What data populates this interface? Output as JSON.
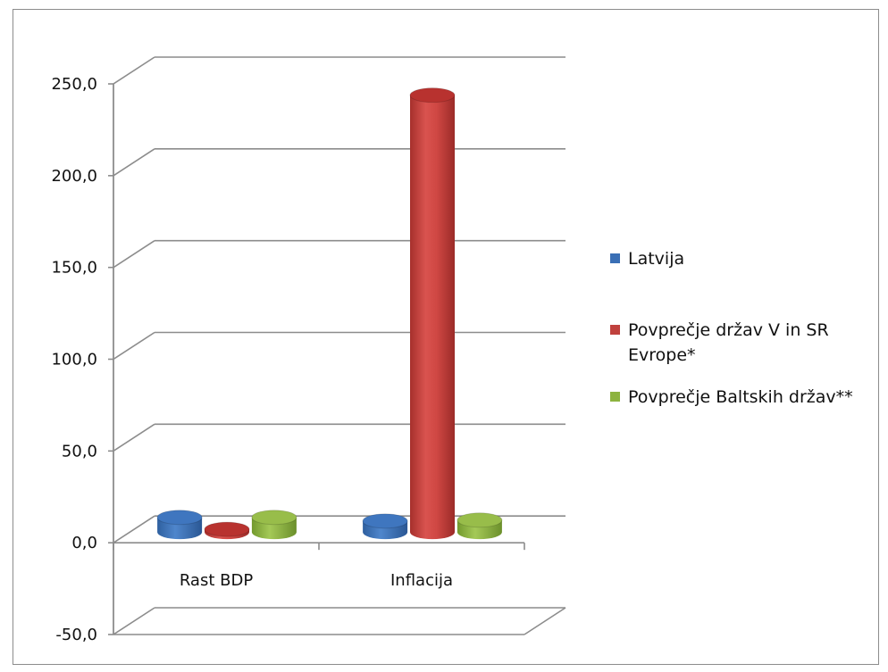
{
  "chart_data": {
    "type": "bar",
    "style": "3d-cylinder",
    "categories": [
      "Rast BDP",
      "Inflacija"
    ],
    "series": [
      {
        "name": "Latvija",
        "color": "#3A6FB5",
        "values": [
          8.0,
          6.0
        ]
      },
      {
        "name": "Povprečje držav V in SR Evrope*",
        "color": "#C0413D",
        "values": [
          1.5,
          238.0
        ]
      },
      {
        "name": "Povprečje Baltskih držav**",
        "color": "#8DB33F",
        "values": [
          8.0,
          6.5
        ]
      }
    ],
    "y_ticks": [
      "250,0",
      "200,0",
      "150,0",
      "100,0",
      "50,0",
      "0,0",
      "-50,0"
    ],
    "ylim": [
      -50,
      250
    ],
    "grid": true,
    "legend_position": "right"
  },
  "legend": {
    "items": [
      {
        "label_lines": [
          "Latvija"
        ],
        "color": "#3A6FB5"
      },
      {
        "label_lines": [
          "Povprečje držav V in SR",
          "Evrope*"
        ],
        "color": "#C0413D"
      },
      {
        "label_lines": [
          "Povprečje Baltskih držav**"
        ],
        "color": "#8DB33F"
      }
    ]
  }
}
